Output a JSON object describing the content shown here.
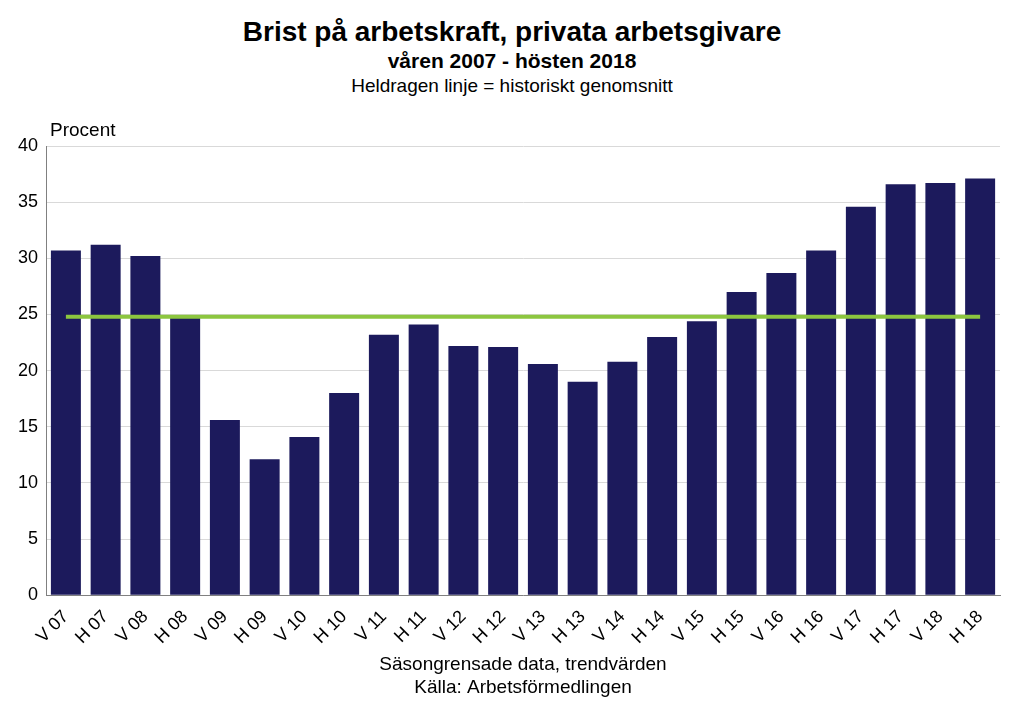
{
  "chart_data": {
    "type": "bar",
    "title": "Brist på arbetskraft, privata arbetsgivare",
    "subtitle": "våren 2007 - hösten 2018",
    "annotations": [
      "Heldragen linje = historiskt genomsnitt"
    ],
    "y_label": "Procent",
    "x_label": [
      "Säsongrensade data, trendvärden",
      "Källa: Arbetsförmedlingen"
    ],
    "categories": [
      "V 07",
      "H 07",
      "V 08",
      "H 08",
      "V 09",
      "H 09",
      "V 10",
      "H 10",
      "V 11",
      "H 11",
      "V 12",
      "H 12",
      "V 13",
      "H 13",
      "V 14",
      "H 14",
      "V 15",
      "H 15",
      "V 16",
      "H 16",
      "V 17",
      "H 17",
      "V 18",
      "H 18"
    ],
    "series": [
      {
        "type": "bar",
        "color": "#1c1a5c",
        "values": [
          30.7,
          31.2,
          30.2,
          24.8,
          15.6,
          12.1,
          14.1,
          18.0,
          23.2,
          24.1,
          22.2,
          22.1,
          20.6,
          19.0,
          20.8,
          23.0,
          24.4,
          27.0,
          28.7,
          30.7,
          34.6,
          36.6,
          36.7,
          37.1
        ]
      },
      {
        "type": "line",
        "color": "#8cc63f",
        "line_style": "solid",
        "values": [
          24.8,
          24.8,
          24.8,
          24.8,
          24.8,
          24.8,
          24.8,
          24.8,
          24.8,
          24.8,
          24.8,
          24.8,
          24.8,
          24.8,
          24.8,
          24.8,
          24.8,
          24.8,
          24.8,
          24.8,
          24.8,
          24.8,
          24.8,
          24.8
        ]
      }
    ],
    "ylim": [
      0,
      40
    ],
    "yticks": [
      0,
      5,
      10,
      15,
      20,
      25,
      30,
      35,
      40
    ],
    "grid": true
  }
}
